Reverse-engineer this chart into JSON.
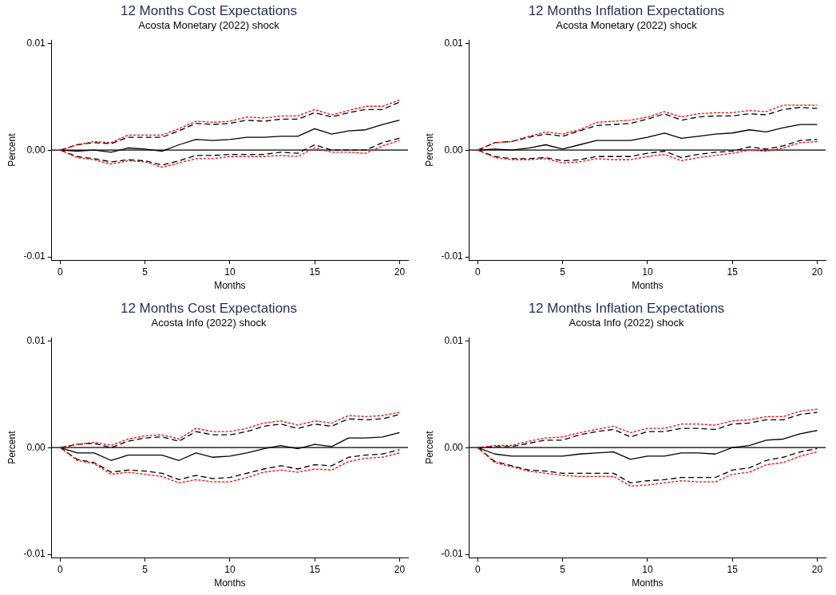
{
  "chart_data": [
    {
      "type": "line",
      "title": "12 Months Cost Expectations",
      "subtitle": "Acosta Monetary (2022) shock",
      "xlabel": "Months",
      "ylabel": "Percent",
      "x": [
        0,
        1,
        2,
        3,
        4,
        5,
        6,
        7,
        8,
        9,
        10,
        11,
        12,
        13,
        14,
        15,
        16,
        17,
        18,
        19,
        20
      ],
      "xlim": [
        -0.5,
        20.5
      ],
      "xticks": [
        0,
        5,
        10,
        15,
        20
      ],
      "ylim": [
        -0.0103,
        0.0103
      ],
      "yticks": [
        {
          "value": -0.01,
          "label": "-0.01"
        },
        {
          "value": 0,
          "label": "0.00"
        },
        {
          "value": 0.01,
          "label": "0.01"
        }
      ],
      "grid": false,
      "legend": false,
      "ref_lines": [
        {
          "axis": "y",
          "value": 0,
          "color": "#000000"
        }
      ],
      "series": [
        {
          "color": "#000000",
          "line_style": "solid",
          "values": [
            0,
            -0.0001,
            0,
            -0.0002,
            0.0002,
            0.0001,
            -0.0001,
            0.0005,
            0.001,
            0.0009,
            0.001,
            0.0012,
            0.0012,
            0.0013,
            0.0013,
            0.002,
            0.0015,
            0.0018,
            0.0019,
            0.0024,
            0.0028
          ]
        },
        {
          "color": "#000000",
          "line_style": "dashed",
          "values": [
            0,
            0.0005,
            0.0007,
            0.0006,
            0.0012,
            0.0012,
            0.0012,
            0.0018,
            0.0025,
            0.0024,
            0.0025,
            0.0028,
            0.0027,
            0.0029,
            0.0029,
            0.0035,
            0.0031,
            0.0035,
            0.0038,
            0.0038,
            0.0045
          ]
        },
        {
          "color": "#000000",
          "line_style": "dashed",
          "values": [
            0,
            -0.0006,
            -0.0008,
            -0.0011,
            -0.0009,
            -0.001,
            -0.0014,
            -0.001,
            -0.0005,
            -0.0005,
            -0.0004,
            -0.0004,
            -0.0004,
            -0.0002,
            -0.0003,
            0.0005,
            0,
            0,
            0,
            0.0007,
            0.0011
          ]
        },
        {
          "color": "#ff0000",
          "line_style": "dotted",
          "values": [
            0,
            0.0005,
            0.0008,
            0.0007,
            0.0014,
            0.0014,
            0.0014,
            0.002,
            0.0027,
            0.0026,
            0.0027,
            0.0031,
            0.003,
            0.0032,
            0.0032,
            0.0038,
            0.0033,
            0.0037,
            0.0041,
            0.0041,
            0.0047
          ]
        },
        {
          "color": "#ff0000",
          "line_style": "dotted",
          "values": [
            0,
            -0.0007,
            -0.0009,
            -0.0013,
            -0.001,
            -0.0011,
            -0.0016,
            -0.0012,
            -0.0008,
            -0.0008,
            -0.0006,
            -0.0006,
            -0.0006,
            -0.0005,
            -0.0006,
            0.0002,
            -0.0002,
            -0.0002,
            -0.0003,
            0.0004,
            0.0009
          ]
        }
      ]
    },
    {
      "type": "line",
      "title": "12 Months Inflation Expectations",
      "subtitle": "Acosta Monetary (2022) shock",
      "xlabel": "Months",
      "ylabel": "Percent",
      "x": [
        0,
        1,
        2,
        3,
        4,
        5,
        6,
        7,
        8,
        9,
        10,
        11,
        12,
        13,
        14,
        15,
        16,
        17,
        18,
        19,
        20
      ],
      "xlim": [
        -0.5,
        20.5
      ],
      "xticks": [
        0,
        5,
        10,
        15,
        20
      ],
      "ylim": [
        -0.0103,
        0.0103
      ],
      "yticks": [
        {
          "value": -0.01,
          "label": "-0.01"
        },
        {
          "value": 0,
          "label": "0.00"
        },
        {
          "value": 0.01,
          "label": "0.01"
        }
      ],
      "grid": false,
      "legend": false,
      "ref_lines": [
        {
          "axis": "y",
          "value": 0,
          "color": "#000000"
        }
      ],
      "series": [
        {
          "color": "#000000",
          "line_style": "solid",
          "values": [
            0,
            0.0001,
            0,
            0.0002,
            0.0005,
            0.0001,
            0.0005,
            0.0009,
            0.0009,
            0.0009,
            0.0012,
            0.0016,
            0.0011,
            0.0013,
            0.0015,
            0.0016,
            0.0019,
            0.0017,
            0.0021,
            0.0024,
            0.0024
          ]
        },
        {
          "color": "#000000",
          "line_style": "dashed",
          "values": [
            0,
            0.0007,
            0.0008,
            0.0012,
            0.0015,
            0.0013,
            0.0018,
            0.0023,
            0.0024,
            0.0025,
            0.0029,
            0.0034,
            0.0028,
            0.0031,
            0.0032,
            0.0032,
            0.0034,
            0.0033,
            0.0038,
            0.004,
            0.0039
          ]
        },
        {
          "color": "#000000",
          "line_style": "dashed",
          "values": [
            0,
            -0.0006,
            -0.0008,
            -0.0008,
            -0.0007,
            -0.001,
            -0.0009,
            -0.0006,
            -0.0006,
            -0.0006,
            -0.0003,
            -0.0001,
            -0.0007,
            -0.0004,
            -0.0002,
            -0.0001,
            0.0003,
            0.0001,
            0.0004,
            0.0009,
            0.001
          ]
        },
        {
          "color": "#ff0000",
          "line_style": "dotted",
          "values": [
            0,
            0.0007,
            0.0008,
            0.0013,
            0.0017,
            0.0015,
            0.0019,
            0.0026,
            0.0027,
            0.0028,
            0.0031,
            0.0036,
            0.0031,
            0.0034,
            0.0035,
            0.0035,
            0.0037,
            0.0036,
            0.0042,
            0.0042,
            0.0042
          ]
        },
        {
          "color": "#ff0000",
          "line_style": "dotted",
          "values": [
            0,
            -0.0007,
            -0.0009,
            -0.0009,
            -0.0008,
            -0.0012,
            -0.0011,
            -0.0008,
            -0.0009,
            -0.0009,
            -0.0006,
            -0.0004,
            -0.001,
            -0.0007,
            -0.0005,
            -0.0003,
            0,
            -0.0001,
            0.0002,
            0.0007,
            0.0008
          ]
        }
      ]
    },
    {
      "type": "line",
      "title": "12 Months Cost Expectations",
      "subtitle": "Acosta Info (2022) shock",
      "xlabel": "Months",
      "ylabel": "Percent",
      "x": [
        0,
        1,
        2,
        3,
        4,
        5,
        6,
        7,
        8,
        9,
        10,
        11,
        12,
        13,
        14,
        15,
        16,
        17,
        18,
        19,
        20
      ],
      "xlim": [
        -0.5,
        20.5
      ],
      "xticks": [
        0,
        5,
        10,
        15,
        20
      ],
      "ylim": [
        -0.0103,
        0.0103
      ],
      "yticks": [
        {
          "value": -0.01,
          "label": "-0.01"
        },
        {
          "value": 0,
          "label": "0.00"
        },
        {
          "value": 0.01,
          "label": "0.01"
        }
      ],
      "grid": false,
      "legend": false,
      "ref_lines": [
        {
          "axis": "y",
          "value": 0,
          "color": "#000000"
        }
      ],
      "series": [
        {
          "color": "#000000",
          "line_style": "solid",
          "values": [
            0,
            -0.0005,
            -0.0005,
            -0.0012,
            -0.0007,
            -0.0007,
            -0.0007,
            -0.0012,
            -0.0005,
            -0.0009,
            -0.0008,
            -0.0005,
            -0.0001,
            0.0002,
            -0.0001,
            0.0003,
            0.0001,
            0.0009,
            0.0009,
            0.001,
            0.0014
          ]
        },
        {
          "color": "#000000",
          "line_style": "dashed",
          "values": [
            0,
            0.0003,
            0.0004,
            0,
            0.0006,
            0.0009,
            0.001,
            0.0006,
            0.0015,
            0.0012,
            0.0012,
            0.0015,
            0.002,
            0.0022,
            0.0018,
            0.0022,
            0.002,
            0.0027,
            0.0026,
            0.0027,
            0.0031
          ]
        },
        {
          "color": "#000000",
          "line_style": "dashed",
          "values": [
            0,
            -0.0011,
            -0.0014,
            -0.0023,
            -0.0021,
            -0.0022,
            -0.0024,
            -0.003,
            -0.0026,
            -0.0029,
            -0.0028,
            -0.0024,
            -0.002,
            -0.0017,
            -0.002,
            -0.0016,
            -0.0017,
            -0.0009,
            -0.0007,
            -0.0006,
            -0.0002
          ]
        },
        {
          "color": "#ff0000",
          "line_style": "dotted",
          "values": [
            0,
            0.0003,
            0.0005,
            0.0002,
            0.0008,
            0.0011,
            0.0012,
            0.0008,
            0.0018,
            0.0015,
            0.0015,
            0.0018,
            0.0023,
            0.0025,
            0.0021,
            0.0025,
            0.0023,
            0.003,
            0.0029,
            0.003,
            0.0033
          ]
        },
        {
          "color": "#ff0000",
          "line_style": "dotted",
          "values": [
            0,
            -0.0012,
            -0.0015,
            -0.0025,
            -0.0023,
            -0.0025,
            -0.0027,
            -0.0033,
            -0.003,
            -0.0032,
            -0.0032,
            -0.0028,
            -0.0023,
            -0.0021,
            -0.0023,
            -0.002,
            -0.0021,
            -0.0013,
            -0.001,
            -0.0009,
            -0.0005
          ]
        }
      ]
    },
    {
      "type": "line",
      "title": "12 Months Inflation Expectations",
      "subtitle": "Acosta Info (2022) shock",
      "xlabel": "Months",
      "ylabel": "Percent",
      "x": [
        0,
        1,
        2,
        3,
        4,
        5,
        6,
        7,
        8,
        9,
        10,
        11,
        12,
        13,
        14,
        15,
        16,
        17,
        18,
        19,
        20
      ],
      "xlim": [
        -0.5,
        20.5
      ],
      "xticks": [
        0,
        5,
        10,
        15,
        20
      ],
      "ylim": [
        -0.0103,
        0.0103
      ],
      "yticks": [
        {
          "value": -0.01,
          "label": "-0.01"
        },
        {
          "value": 0,
          "label": "0.00"
        },
        {
          "value": 0.01,
          "label": "0.01"
        }
      ],
      "grid": false,
      "legend": false,
      "ref_lines": [
        {
          "axis": "y",
          "value": 0,
          "color": "#000000"
        }
      ],
      "series": [
        {
          "color": "#000000",
          "line_style": "solid",
          "values": [
            0,
            -0.0006,
            -0.0008,
            -0.0008,
            -0.0008,
            -0.0008,
            -0.0006,
            -0.0005,
            -0.0004,
            -0.0011,
            -0.0008,
            -0.0008,
            -0.0005,
            -0.0005,
            -0.0006,
            0,
            0.0002,
            0.0007,
            0.0008,
            0.0013,
            0.0016
          ]
        },
        {
          "color": "#000000",
          "line_style": "dashed",
          "values": [
            0,
            0.0001,
            0.0001,
            0.0004,
            0.0007,
            0.0007,
            0.0012,
            0.0015,
            0.0017,
            0.001,
            0.0015,
            0.0015,
            0.0018,
            0.0018,
            0.0017,
            0.0022,
            0.0023,
            0.0026,
            0.0026,
            0.0031,
            0.0033
          ]
        },
        {
          "color": "#000000",
          "line_style": "dashed",
          "values": [
            0,
            -0.0013,
            -0.0017,
            -0.0021,
            -0.0022,
            -0.0024,
            -0.0024,
            -0.0024,
            -0.0024,
            -0.0033,
            -0.0031,
            -0.003,
            -0.0028,
            -0.0028,
            -0.0028,
            -0.0021,
            -0.0019,
            -0.0012,
            -0.0009,
            -0.0004,
            -0.0001
          ]
        },
        {
          "color": "#ff0000",
          "line_style": "dotted",
          "values": [
            0,
            0.0002,
            0.0002,
            0.0006,
            0.0009,
            0.001,
            0.0014,
            0.0017,
            0.002,
            0.0014,
            0.0018,
            0.0018,
            0.0022,
            0.0022,
            0.0021,
            0.0025,
            0.0026,
            0.0029,
            0.0029,
            0.0034,
            0.0036
          ]
        },
        {
          "color": "#ff0000",
          "line_style": "dotted",
          "values": [
            0,
            -0.0014,
            -0.0018,
            -0.0022,
            -0.0024,
            -0.0026,
            -0.0027,
            -0.0027,
            -0.0027,
            -0.0036,
            -0.0035,
            -0.0033,
            -0.0031,
            -0.0032,
            -0.0032,
            -0.0025,
            -0.0023,
            -0.0016,
            -0.0014,
            -0.0008,
            -0.0004
          ]
        }
      ]
    }
  ]
}
